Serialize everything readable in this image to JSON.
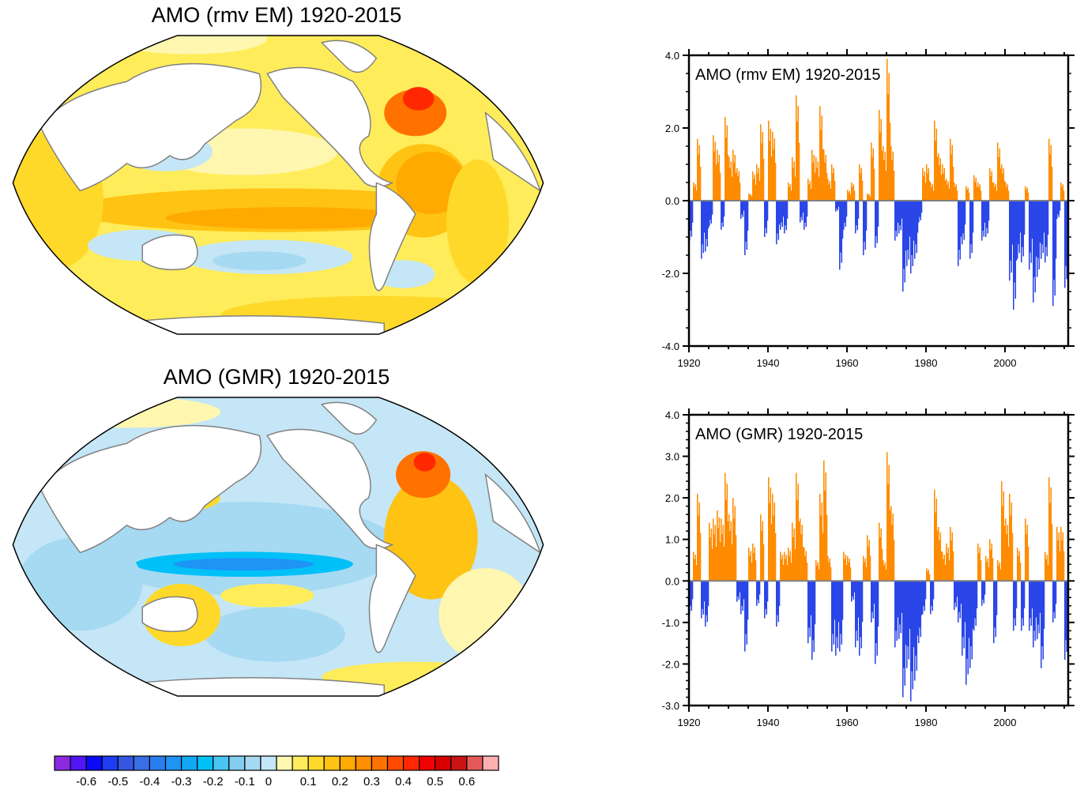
{
  "maps": [
    {
      "title": "AMO (rmv EM) 1920-2015",
      "pattern": "warm",
      "description": "Regression pattern, mostly positive with max in subpolar North Atlantic"
    },
    {
      "title": "AMO (GMR) 1920-2015",
      "pattern": "mixed",
      "description": "Positive North Atlantic, negative equatorial Pacific"
    }
  ],
  "colorbar": {
    "labels": [
      "-0.6",
      "-0.5",
      "-0.4",
      "-0.3",
      "-0.2",
      "-0.1",
      "0",
      "0.1",
      "0.2",
      "0.3",
      "0.4",
      "0.5",
      "0.6"
    ],
    "colors": [
      "#8a2be2",
      "#5016f5",
      "#0a0af8",
      "#1f3cf5",
      "#3456e0",
      "#3a6ee6",
      "#2a7ff0",
      "#1e94f6",
      "#11a8f5",
      "#00c0f8",
      "#4ac4f2",
      "#82cdf0",
      "#a6d9f2",
      "#c4e6f6",
      "#fff7b0",
      "#ffec5a",
      "#ffd92a",
      "#ffc314",
      "#ffaa00",
      "#ff8e00",
      "#ff7200",
      "#ff4a00",
      "#ff2800",
      "#f00000",
      "#d80000",
      "#c81414",
      "#e45a5a",
      "#ffb0b0"
    ]
  },
  "chart_data": [
    {
      "type": "bar",
      "title": "AMO (rmv EM) 1920-2015",
      "xlabel": "",
      "ylabel": "",
      "xlim": [
        1920,
        2016
      ],
      "ylim": [
        -4.0,
        4.0
      ],
      "yticks": [
        "4.0",
        "2.0",
        "0.0",
        "-2.0",
        "-4.0"
      ],
      "ytick_values": [
        4,
        2,
        0,
        -2,
        -4
      ],
      "xticks": [
        "1920",
        "1940",
        "1960",
        "1980",
        "2000"
      ],
      "pos_color": "#ff8c00",
      "neg_color": "#2a46e8",
      "x": [
        1920,
        1921,
        1922,
        1923,
        1924,
        1925,
        1926,
        1927,
        1928,
        1929,
        1930,
        1931,
        1932,
        1933,
        1934,
        1935,
        1936,
        1937,
        1938,
        1939,
        1940,
        1941,
        1942,
        1943,
        1944,
        1945,
        1946,
        1947,
        1948,
        1949,
        1950,
        1951,
        1952,
        1953,
        1954,
        1955,
        1956,
        1957,
        1958,
        1959,
        1960,
        1961,
        1962,
        1963,
        1964,
        1965,
        1966,
        1967,
        1968,
        1969,
        1970,
        1971,
        1972,
        1973,
        1974,
        1975,
        1976,
        1977,
        1978,
        1979,
        1980,
        1981,
        1982,
        1983,
        1984,
        1985,
        1986,
        1987,
        1988,
        1989,
        1990,
        1991,
        1992,
        1993,
        1994,
        1995,
        1996,
        1997,
        1998,
        1999,
        2000,
        2001,
        2002,
        2003,
        2004,
        2005,
        2006,
        2007,
        2008,
        2009,
        2010,
        2011,
        2012,
        2013,
        2014,
        2015
      ],
      "values": [
        -1.1,
        0.5,
        1.7,
        -1.6,
        -1.4,
        -0.7,
        1.8,
        1.4,
        -0.8,
        2.3,
        1.2,
        1.4,
        0.9,
        -0.5,
        -1.5,
        0.2,
        0.8,
        1.0,
        2.1,
        -1.0,
        2.2,
        1.9,
        -1.2,
        -0.8,
        -0.9,
        0.5,
        1.2,
        2.9,
        -0.6,
        -0.8,
        0.6,
        1.4,
        1.2,
        2.6,
        1.4,
        0.6,
        1.0,
        -0.3,
        -1.9,
        -0.8,
        0.3,
        0.5,
        -0.9,
        1.0,
        -1.5,
        0.2,
        1.6,
        -1.3,
        2.5,
        1.5,
        3.9,
        1.5,
        -1.1,
        -0.9,
        -2.5,
        -1.8,
        -2.0,
        -1.6,
        -0.6,
        0.9,
        1.0,
        0.5,
        2.2,
        1.3,
        1.0,
        0.6,
        1.7,
        0.5,
        -1.8,
        -1.2,
        0.4,
        -1.6,
        0.7,
        0.5,
        -1.1,
        -1.0,
        0.9,
        0.5,
        1.6,
        1.0,
        0.5,
        -2.2,
        -3.0,
        -1.6,
        -1.7,
        0.4,
        -1.9,
        -2.8,
        -2.1,
        -1.6,
        -1.7,
        1.7,
        -2.9,
        -0.5,
        0.5,
        -2.4
      ]
    },
    {
      "type": "bar",
      "title": "AMO (GMR) 1920-2015",
      "xlabel": "",
      "ylabel": "",
      "xlim": [
        1920,
        2016
      ],
      "ylim": [
        -3.0,
        4.0
      ],
      "yticks": [
        "4.0",
        "3.0",
        "2.0",
        "1.0",
        "0.0",
        "-1.0",
        "-2.0",
        "-3.0"
      ],
      "ytick_values": [
        4,
        3,
        2,
        1,
        0,
        -1,
        -2,
        -3
      ],
      "xticks": [
        "1920",
        "1940",
        "1960",
        "1980",
        "2000"
      ],
      "pos_color": "#ff8c00",
      "neg_color": "#2a46e8",
      "x": [
        1920,
        1921,
        1922,
        1923,
        1924,
        1925,
        1926,
        1927,
        1928,
        1929,
        1930,
        1931,
        1932,
        1933,
        1934,
        1935,
        1936,
        1937,
        1938,
        1939,
        1940,
        1941,
        1942,
        1943,
        1944,
        1945,
        1946,
        1947,
        1948,
        1949,
        1950,
        1951,
        1952,
        1953,
        1954,
        1955,
        1956,
        1957,
        1958,
        1959,
        1960,
        1961,
        1962,
        1963,
        1964,
        1965,
        1966,
        1967,
        1968,
        1969,
        1970,
        1971,
        1972,
        1973,
        1974,
        1975,
        1976,
        1977,
        1978,
        1979,
        1980,
        1981,
        1982,
        1983,
        1984,
        1985,
        1986,
        1987,
        1988,
        1989,
        1990,
        1991,
        1992,
        1993,
        1994,
        1995,
        1996,
        1997,
        1998,
        1999,
        2000,
        2001,
        2002,
        2003,
        2004,
        2005,
        2006,
        2007,
        2008,
        2009,
        2010,
        2011,
        2012,
        2013,
        2014,
        2015
      ],
      "values": [
        -0.8,
        0.7,
        2.1,
        -0.9,
        -1.1,
        1.4,
        1.5,
        1.7,
        1.5,
        2.6,
        1.6,
        2.0,
        -0.5,
        -0.8,
        -1.7,
        0.8,
        0.9,
        -0.6,
        1.6,
        -0.9,
        2.5,
        2.1,
        -1.1,
        0.7,
        0.7,
        0.8,
        1.4,
        2.6,
        1.5,
        0.8,
        -1.5,
        -1.9,
        0.5,
        2.1,
        2.9,
        0.6,
        -1.7,
        -1.8,
        -1.7,
        0.7,
        0.6,
        -0.5,
        -1.6,
        -1.8,
        0.6,
        1.1,
        -1.0,
        -2.0,
        1.4,
        0.5,
        3.1,
        1.8,
        -1.6,
        -1.4,
        -2.8,
        -2.1,
        -2.9,
        -2.4,
        -1.5,
        -0.8,
        0.3,
        -0.8,
        2.2,
        1.3,
        0.7,
        0.9,
        1.3,
        -0.7,
        -1.0,
        -1.8,
        -2.5,
        -2.1,
        -1.2,
        0.9,
        -0.6,
        0.6,
        1.0,
        -1.5,
        0.5,
        2.4,
        1.5,
        2.1,
        -1.2,
        0.8,
        -1.2,
        1.5,
        -1.2,
        -1.6,
        -1.4,
        -2.1,
        0.7,
        2.5,
        -1.0,
        1.3,
        1.3,
        -1.9
      ]
    }
  ]
}
